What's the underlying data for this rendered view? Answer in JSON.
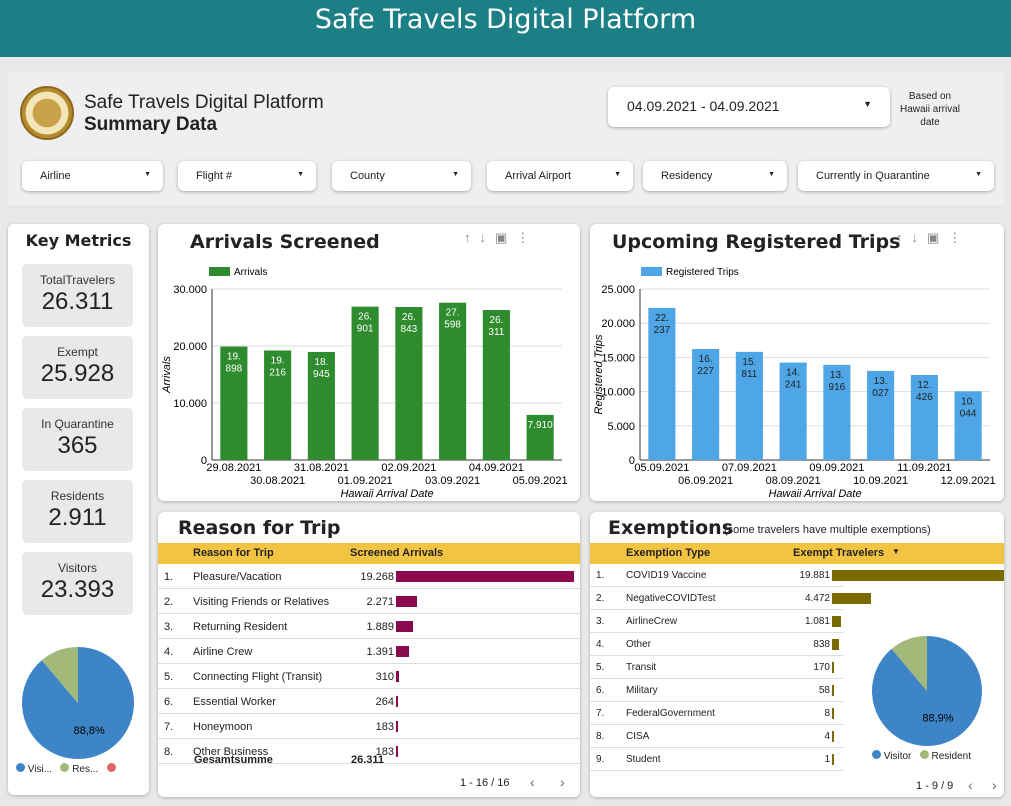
{
  "banner": "Safe Travels Digital Platform",
  "header": {
    "title": "Safe Travels Digital Platform",
    "subtitle": "Summary Data",
    "date_range": "04.09.2021 - 04.09.2021",
    "date_note": "Based on Hawaii arrival date"
  },
  "filters": [
    "Airline",
    "Flight #",
    "County",
    "Arrival Airport",
    "Residency",
    "Currently in Quarantine"
  ],
  "key_metrics": {
    "title": "Key Metrics",
    "items": [
      {
        "label": "TotalTravelers",
        "value": "26.311"
      },
      {
        "label": "Exempt",
        "value": "25.928"
      },
      {
        "label": "In Quarantine",
        "value": "365"
      },
      {
        "label": "Residents",
        "value": "2.911"
      },
      {
        "label": "Visitors",
        "value": "23.393"
      }
    ],
    "pie": {
      "percent_label": "88,8%",
      "visitor_share": 0.888,
      "legend": [
        "Visi...",
        "Res..."
      ],
      "colors": [
        "#3d85c6",
        "#a3b97a",
        "#e06666"
      ]
    }
  },
  "arrivals": {
    "title": "Arrivals Screened",
    "chart_data": {
      "type": "bar",
      "series_name": "Arrivals",
      "color": "#2e8b2e",
      "categories": [
        "29.08.2021",
        "30.08.2021",
        "31.08.2021",
        "01.09.2021",
        "02.09.2021",
        "03.09.2021",
        "04.09.2021",
        "05.09.2021"
      ],
      "values": [
        19898,
        19216,
        18945,
        26901,
        26843,
        27598,
        26311,
        7910
      ],
      "value_labels": [
        "19.\n898",
        "19.\n216",
        "18.\n945",
        "26.\n901",
        "26.\n843",
        "27.\n598",
        "26.\n311",
        "7.910"
      ],
      "yticks": [
        "0",
        "10.000",
        "20.000",
        "30.000"
      ],
      "ylim": [
        0,
        30000
      ],
      "ylabel": "Arrivals",
      "xlabel": "Hawaii Arrival Date"
    }
  },
  "trips": {
    "title": "Upcoming Registered Trips",
    "chart_data": {
      "type": "bar",
      "series_name": "Registered Trips",
      "color": "#4ea6e6",
      "categories": [
        "05.09.2021",
        "06.09.2021",
        "07.09.2021",
        "08.09.2021",
        "09.09.2021",
        "10.09.2021",
        "11.09.2021",
        "12.09.2021"
      ],
      "values": [
        22237,
        16227,
        15811,
        14241,
        13916,
        13027,
        12426,
        10044
      ],
      "value_labels": [
        "22.\n237",
        "16.\n227",
        "15.\n811",
        "14.\n241",
        "13.\n916",
        "13.\n027",
        "12.\n426",
        "10.\n044"
      ],
      "yticks": [
        "0",
        "5.000",
        "10.000",
        "15.000",
        "20.000",
        "25.000"
      ],
      "ylim": [
        0,
        25000
      ],
      "ylabel": "Registered Trips",
      "xlabel": "Hawaii Arrival Date"
    }
  },
  "reason": {
    "title": "Reason for Trip",
    "col1": "Reason for Trip",
    "col2": "Screened Arrivals",
    "bar_color": "#8b0a4d",
    "rows": [
      {
        "n": "1.",
        "label": "Pleasure/Vacation",
        "value": "19.268",
        "v": 19268
      },
      {
        "n": "2.",
        "label": "Visiting Friends or Relatives",
        "value": "2.271",
        "v": 2271
      },
      {
        "n": "3.",
        "label": "Returning Resident",
        "value": "1.889",
        "v": 1889
      },
      {
        "n": "4.",
        "label": "Airline Crew",
        "value": "1.391",
        "v": 1391
      },
      {
        "n": "5.",
        "label": "Connecting Flight (Transit)",
        "value": "310",
        "v": 310
      },
      {
        "n": "6.",
        "label": "Essential Worker",
        "value": "264",
        "v": 264
      },
      {
        "n": "7.",
        "label": "Honeymoon",
        "value": "183",
        "v": 183
      },
      {
        "n": "8.",
        "label": "Other Business",
        "value": "183",
        "v": 183
      }
    ],
    "total_label": "Gesamtsumme",
    "total_value": "26.311",
    "pager": "1 - 16 / 16"
  },
  "exemptions": {
    "title": "Exemptions",
    "note": "(some travelers have multiple exemptions)",
    "col1": "Exemption Type",
    "col2": "Exempt Travelers",
    "bar_color": "#7a6a00",
    "rows": [
      {
        "n": "1.",
        "label": "COVID19 Vaccine",
        "value": "19.881",
        "v": 19881
      },
      {
        "n": "2.",
        "label": "NegativeCOVIDTest",
        "value": "4.472",
        "v": 4472
      },
      {
        "n": "3.",
        "label": "AirlineCrew",
        "value": "1.081",
        "v": 1081
      },
      {
        "n": "4.",
        "label": "Other",
        "value": "838",
        "v": 838
      },
      {
        "n": "5.",
        "label": "Transit",
        "value": "170",
        "v": 170
      },
      {
        "n": "6.",
        "label": "Military",
        "value": "58",
        "v": 58
      },
      {
        "n": "7.",
        "label": "FederalGovernment",
        "value": "8",
        "v": 8
      },
      {
        "n": "8.",
        "label": "CISA",
        "value": "4",
        "v": 4
      },
      {
        "n": "9.",
        "label": "Student",
        "value": "1",
        "v": 1
      }
    ],
    "pie": {
      "percent_label": "88,9%",
      "visitor_share": 0.889,
      "legend": [
        "Visitor",
        "Resident"
      ],
      "colors": [
        "#3d85c6",
        "#a3b97a"
      ]
    },
    "pager": "1 - 9 / 9"
  }
}
